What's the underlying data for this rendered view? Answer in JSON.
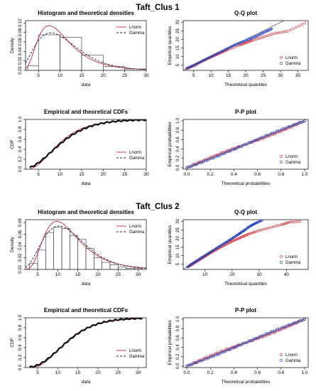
{
  "figure": {
    "group_titles": [
      "Taft_Clus 1",
      "Taft_Clus 2"
    ]
  },
  "legend": {
    "lnorm": "Lnorm",
    "gamma": "Gamma"
  },
  "colors": {
    "lnorm": "#c0283c",
    "gamma": "#2a2a2a",
    "points_lnorm": "#d9262e",
    "points_gamma": "#1f3fbf",
    "axis": "#000000"
  },
  "chart_data": [
    {
      "type": "histogram",
      "group": "Taft_Clus 1",
      "title": "Histogram and theoretical densities",
      "xlabel": "data",
      "ylabel": "Density",
      "xlim": [
        2,
        30
      ],
      "ylim": [
        0,
        0.105
      ],
      "xticks": [
        5,
        10,
        15,
        20,
        25,
        30
      ],
      "yticks": [
        0.0,
        0.02,
        0.04,
        0.06,
        0.08,
        0.1
      ],
      "ytick_labels": [
        "0.00",
        "0.02",
        "0.04",
        "0.06",
        "0.08",
        "0.10"
      ],
      "bins": [
        {
          "from": 2.5,
          "to": 5,
          "density": 0.01
        },
        {
          "from": 5,
          "to": 10,
          "density": 0.075
        },
        {
          "from": 10,
          "to": 15,
          "density": 0.07
        },
        {
          "from": 15,
          "to": 20,
          "density": 0.032
        },
        {
          "from": 20,
          "to": 25,
          "density": 0.008
        },
        {
          "from": 25,
          "to": 30,
          "density": 0.003
        }
      ],
      "curves": [
        {
          "name": "Lnorm",
          "dist": "lnorm",
          "meanlog": 2.26,
          "sdlog": 0.5
        },
        {
          "name": "Gamma",
          "dist": "gamma",
          "shape": 3.6,
          "rate": 0.33
        }
      ]
    },
    {
      "type": "scatter",
      "group": "Taft_Clus 1",
      "title": "Q-Q plot",
      "xlabel": "Theoretical quantiles",
      "ylabel": "Empirical quantiles",
      "xlim": [
        2,
        38
      ],
      "ylim": [
        2,
        31
      ],
      "xticks": [
        5,
        10,
        15,
        20,
        25,
        30,
        35
      ],
      "yticks": [
        5,
        10,
        15,
        20,
        25,
        30
      ],
      "reference_line": true,
      "quantile_pairs_lnorm": [
        [
          3.0,
          3.0
        ],
        [
          5.0,
          4.6
        ],
        [
          7.0,
          6.8
        ],
        [
          9.0,
          8.8
        ],
        [
          11.0,
          10.6
        ],
        [
          13.0,
          12.4
        ],
        [
          15.0,
          14.2
        ],
        [
          18.0,
          16.6
        ],
        [
          20.0,
          18.0
        ],
        [
          22.0,
          19.5
        ],
        [
          25.0,
          21.4
        ],
        [
          28.0,
          23.4
        ],
        [
          32.0,
          24.8
        ],
        [
          37.0,
          29.5
        ]
      ],
      "quantile_pairs_gamma": [
        [
          3.0,
          3.2
        ],
        [
          5.0,
          5.0
        ],
        [
          7.0,
          7.0
        ],
        [
          9.0,
          9.0
        ],
        [
          11.0,
          11.0
        ],
        [
          13.0,
          13.0
        ],
        [
          15.0,
          15.0
        ],
        [
          17.0,
          17.0
        ],
        [
          19.0,
          18.6
        ],
        [
          21.0,
          20.2
        ],
        [
          23.0,
          21.8
        ],
        [
          24.5,
          23.4
        ],
        [
          26.0,
          24.8
        ],
        [
          27.5,
          26.2
        ]
      ]
    },
    {
      "type": "line",
      "group": "Taft_Clus 1",
      "title": "Empirical and theoretical CDFs",
      "xlabel": "data",
      "ylabel": "CDF",
      "xlim": [
        2,
        30
      ],
      "ylim": [
        0,
        1
      ],
      "xticks": [
        5,
        10,
        15,
        20,
        25,
        30
      ],
      "yticks": [
        0.0,
        0.2,
        0.4,
        0.6,
        0.8,
        1.0
      ],
      "ytick_labels": [
        "0.0",
        "0.2",
        "0.4",
        "0.6",
        "0.8",
        "1.0"
      ],
      "x_range": [
        3,
        30
      ],
      "curves": [
        {
          "name": "Lnorm",
          "dist": "lnorm",
          "meanlog": 2.26,
          "sdlog": 0.5
        },
        {
          "name": "Gamma",
          "dist": "gamma",
          "shape": 3.6,
          "rate": 0.33
        }
      ]
    },
    {
      "type": "scatter",
      "group": "Taft_Clus 1",
      "title": "P-P plot",
      "xlabel": "Theoretical probabilities",
      "ylabel": "Empirical probabilities",
      "xlim": [
        -0.03,
        1.03
      ],
      "ylim": [
        -0.03,
        1.03
      ],
      "xticks": [
        0.0,
        0.2,
        0.4,
        0.6,
        0.8,
        1.0
      ],
      "xtick_labels": [
        "0.0",
        "0.2",
        "0.4",
        "0.6",
        "0.8",
        "1.0"
      ],
      "yticks": [
        0.0,
        0.2,
        0.4,
        0.6,
        0.8,
        1.0
      ],
      "ytick_labels": [
        "0.0",
        "0.2",
        "0.4",
        "0.6",
        "0.8",
        "1.0"
      ],
      "reference_line": true
    },
    {
      "type": "histogram",
      "group": "Taft_Clus 2",
      "title": "Histogram and theoretical densities",
      "xlabel": "data",
      "ylabel": "Density",
      "xlim": [
        2,
        32
      ],
      "ylim": [
        0,
        0.085
      ],
      "xticks": [
        5,
        10,
        15,
        20,
        25,
        30
      ],
      "yticks": [
        0.0,
        0.02,
        0.04,
        0.06,
        0.08
      ],
      "ytick_labels": [
        "0.00",
        "0.02",
        "0.04",
        "0.06",
        "0.08"
      ],
      "bins": [
        {
          "from": 3,
          "to": 5,
          "density": 0.01
        },
        {
          "from": 5,
          "to": 7,
          "density": 0.033
        },
        {
          "from": 7,
          "to": 9,
          "density": 0.063
        },
        {
          "from": 9,
          "to": 11,
          "density": 0.072
        },
        {
          "from": 11,
          "to": 13,
          "density": 0.07
        },
        {
          "from": 13,
          "to": 15,
          "density": 0.058
        },
        {
          "from": 15,
          "to": 17,
          "density": 0.052
        },
        {
          "from": 17,
          "to": 19,
          "density": 0.036
        },
        {
          "from": 19,
          "to": 21,
          "density": 0.02
        },
        {
          "from": 21,
          "to": 23,
          "density": 0.012
        },
        {
          "from": 23,
          "to": 25,
          "density": 0.008
        },
        {
          "from": 25,
          "to": 27,
          "density": 0.004
        },
        {
          "from": 27,
          "to": 29,
          "density": 0.002
        },
        {
          "from": 29,
          "to": 31,
          "density": 0.002
        }
      ],
      "curves": [
        {
          "name": "Lnorm",
          "dist": "lnorm",
          "meanlog": 2.48,
          "sdlog": 0.45
        },
        {
          "name": "Gamma",
          "dist": "gamma",
          "shape": 4.8,
          "rate": 0.37
        }
      ]
    },
    {
      "type": "scatter",
      "group": "Taft_Clus 2",
      "title": "Q-Q plot",
      "xlabel": "Theoretical quantiles",
      "ylabel": "Empirical quantiles",
      "xlim": [
        2,
        48
      ],
      "ylim": [
        2,
        31
      ],
      "xticks": [
        10,
        20,
        30,
        40
      ],
      "yticks": [
        5,
        10,
        15,
        20,
        25,
        30
      ],
      "reference_line": true,
      "quantile_pairs_lnorm": [
        [
          4.0,
          3.6
        ],
        [
          6.0,
          5.6
        ],
        [
          8.0,
          7.6
        ],
        [
          10.0,
          9.6
        ],
        [
          12.0,
          11.6
        ],
        [
          14.0,
          13.4
        ],
        [
          16.0,
          15.2
        ],
        [
          18.0,
          16.8
        ],
        [
          20.0,
          18.4
        ],
        [
          22.0,
          19.8
        ],
        [
          24.0,
          21.2
        ],
        [
          26.0,
          22.6
        ],
        [
          29.0,
          24.2
        ],
        [
          33.0,
          26.0
        ],
        [
          38.0,
          28.0
        ],
        [
          41.0,
          29.5
        ],
        [
          45.0,
          30.0
        ]
      ],
      "quantile_pairs_gamma": [
        [
          3.5,
          3.4
        ],
        [
          5.5,
          5.6
        ],
        [
          7.5,
          7.6
        ],
        [
          9.5,
          9.6
        ],
        [
          11.5,
          11.6
        ],
        [
          13.5,
          13.6
        ],
        [
          15.5,
          15.6
        ],
        [
          17.5,
          17.6
        ],
        [
          19.5,
          19.6
        ],
        [
          21.5,
          21.6
        ],
        [
          23.0,
          23.2
        ],
        [
          24.5,
          24.8
        ],
        [
          26.0,
          26.6
        ],
        [
          27.5,
          28.0
        ],
        [
          29.0,
          29.2
        ],
        [
          31.0,
          30.5
        ]
      ]
    },
    {
      "type": "line",
      "group": "Taft_Clus 2",
      "title": "Empirical and theoretical CDFs",
      "xlabel": "data",
      "ylabel": "CDF",
      "xlim": [
        2,
        32
      ],
      "ylim": [
        0,
        1
      ],
      "xticks": [
        5,
        10,
        15,
        20,
        25,
        30
      ],
      "yticks": [
        0.0,
        0.2,
        0.4,
        0.6,
        0.8,
        1.0
      ],
      "ytick_labels": [
        "0.0",
        "0.2",
        "0.4",
        "0.6",
        "0.8",
        "1.0"
      ],
      "x_range": [
        3,
        31
      ],
      "curves": [
        {
          "name": "Lnorm",
          "dist": "lnorm",
          "meanlog": 2.48,
          "sdlog": 0.45
        },
        {
          "name": "Gamma",
          "dist": "gamma",
          "shape": 4.8,
          "rate": 0.37
        }
      ]
    },
    {
      "type": "scatter",
      "group": "Taft_Clus 2",
      "title": "P-P plot",
      "xlabel": "Theoretical probabilities",
      "ylabel": "Empirical probabilities",
      "xlim": [
        -0.03,
        1.03
      ],
      "ylim": [
        -0.03,
        1.03
      ],
      "xticks": [
        0.0,
        0.2,
        0.4,
        0.6,
        0.8,
        1.0
      ],
      "xtick_labels": [
        "0.0",
        "0.2",
        "0.4",
        "0.6",
        "0.8",
        "1.0"
      ],
      "yticks": [
        0.0,
        0.2,
        0.4,
        0.6,
        0.8,
        1.0
      ],
      "ytick_labels": [
        "0.0",
        "0.2",
        "0.4",
        "0.6",
        "0.8",
        "1.0"
      ],
      "reference_line": true
    }
  ]
}
